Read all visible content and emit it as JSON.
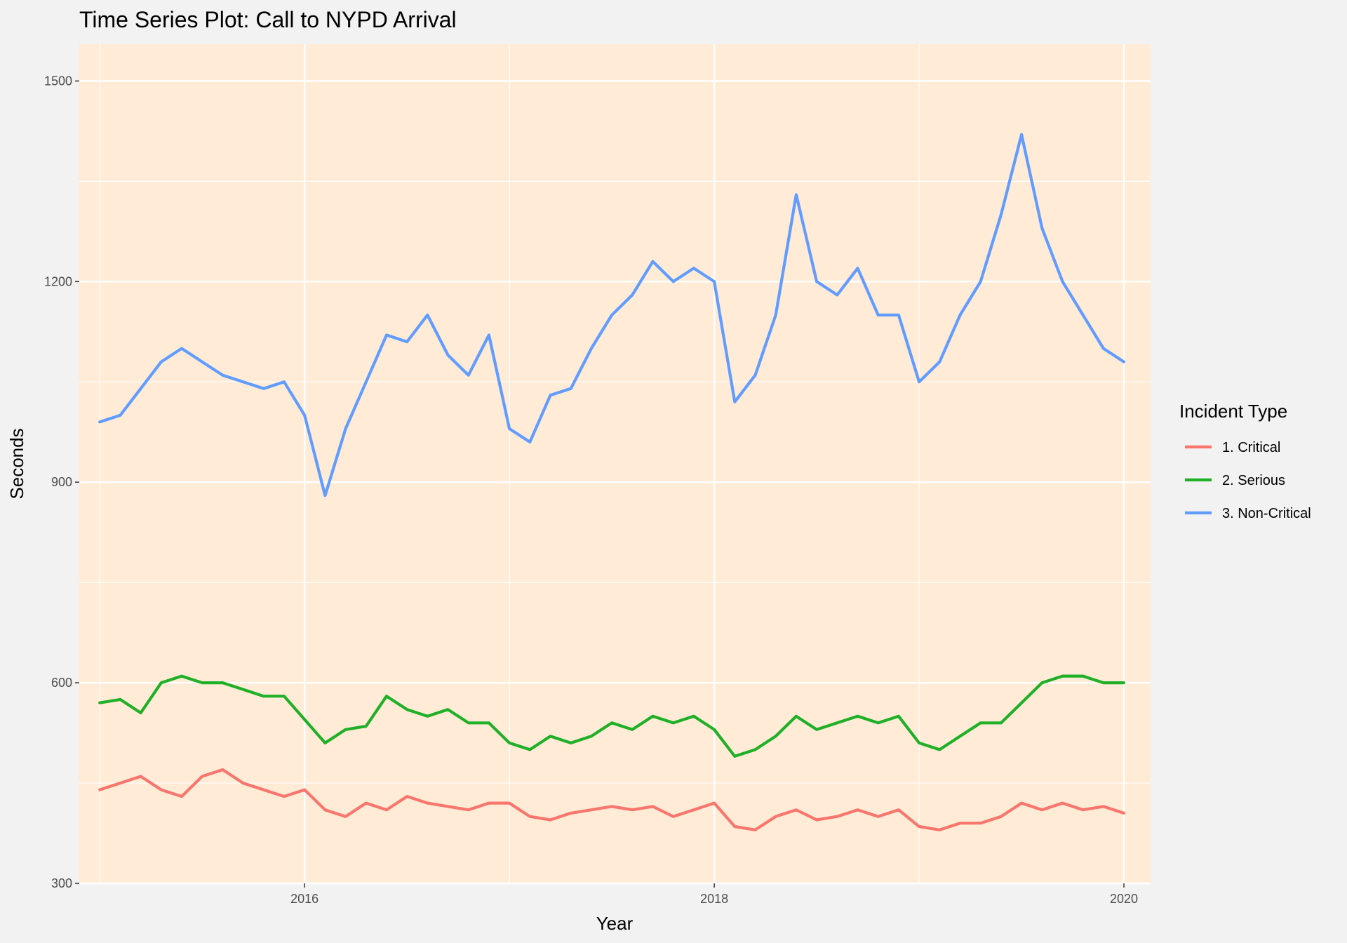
{
  "chart_data": {
    "type": "line",
    "title": "Time Series Plot:  Call to NYPD Arrival",
    "xlabel": "Year",
    "ylabel": "Seconds",
    "xlim": [
      2014.9,
      2020.13
    ],
    "ylim": [
      300,
      1555
    ],
    "x_ticks": [
      2016,
      2018,
      2020
    ],
    "x_tick_labels": [
      "2016",
      "2018",
      "2020"
    ],
    "y_ticks": [
      300,
      600,
      900,
      1200,
      1500
    ],
    "y_tick_labels": [
      "300",
      "600",
      "900",
      "1200",
      "1500"
    ],
    "grid": true,
    "background_color": "#ffebd6",
    "legend_title": "Incident Type",
    "legend_position": "right",
    "series": [
      {
        "name": "1. Critical",
        "color": "#f8766d",
        "x": [
          2015.0,
          2015.1,
          2015.2,
          2015.3,
          2015.4,
          2015.5,
          2015.6,
          2015.7,
          2015.8,
          2015.9,
          2016.0,
          2016.1,
          2016.2,
          2016.3,
          2016.4,
          2016.5,
          2016.6,
          2016.7,
          2016.8,
          2016.9,
          2017.0,
          2017.1,
          2017.2,
          2017.3,
          2017.4,
          2017.5,
          2017.6,
          2017.7,
          2017.8,
          2017.9,
          2018.0,
          2018.1,
          2018.2,
          2018.3,
          2018.4,
          2018.5,
          2018.6,
          2018.7,
          2018.8,
          2018.9,
          2019.0,
          2019.1,
          2019.2,
          2019.3,
          2019.4,
          2019.5,
          2019.6,
          2019.7,
          2019.8,
          2019.9,
          2020.0
        ],
        "values": [
          440,
          450,
          460,
          440,
          430,
          460,
          470,
          450,
          440,
          430,
          440,
          410,
          400,
          420,
          410,
          430,
          420,
          415,
          410,
          420,
          420,
          400,
          395,
          405,
          410,
          415,
          410,
          415,
          400,
          410,
          420,
          385,
          380,
          400,
          410,
          395,
          400,
          410,
          400,
          410,
          385,
          380,
          390,
          390,
          400,
          420,
          410,
          420,
          410,
          415,
          405
        ]
      },
      {
        "name": "2. Serious",
        "color": "#1fb028",
        "x": [
          2015.0,
          2015.1,
          2015.2,
          2015.3,
          2015.4,
          2015.5,
          2015.6,
          2015.7,
          2015.8,
          2015.9,
          2016.0,
          2016.1,
          2016.2,
          2016.3,
          2016.4,
          2016.5,
          2016.6,
          2016.7,
          2016.8,
          2016.9,
          2017.0,
          2017.1,
          2017.2,
          2017.3,
          2017.4,
          2017.5,
          2017.6,
          2017.7,
          2017.8,
          2017.9,
          2018.0,
          2018.1,
          2018.2,
          2018.3,
          2018.4,
          2018.5,
          2018.6,
          2018.7,
          2018.8,
          2018.9,
          2019.0,
          2019.1,
          2019.2,
          2019.3,
          2019.4,
          2019.5,
          2019.6,
          2019.7,
          2019.8,
          2019.9,
          2020.0
        ],
        "values": [
          570,
          575,
          555,
          600,
          610,
          600,
          600,
          590,
          580,
          580,
          545,
          510,
          530,
          535,
          580,
          560,
          550,
          560,
          540,
          540,
          510,
          500,
          520,
          510,
          520,
          540,
          530,
          550,
          540,
          550,
          530,
          490,
          500,
          520,
          550,
          530,
          540,
          550,
          540,
          550,
          510,
          500,
          520,
          540,
          540,
          570,
          600,
          610,
          610,
          600,
          600
        ]
      },
      {
        "name": "3. Non-Critical",
        "color": "#619cff",
        "x": [
          2015.0,
          2015.1,
          2015.2,
          2015.3,
          2015.4,
          2015.5,
          2015.6,
          2015.7,
          2015.8,
          2015.9,
          2016.0,
          2016.1,
          2016.2,
          2016.3,
          2016.4,
          2016.5,
          2016.6,
          2016.7,
          2016.8,
          2016.9,
          2017.0,
          2017.1,
          2017.2,
          2017.3,
          2017.4,
          2017.5,
          2017.6,
          2017.7,
          2017.8,
          2017.9,
          2018.0,
          2018.1,
          2018.2,
          2018.3,
          2018.4,
          2018.5,
          2018.6,
          2018.7,
          2018.8,
          2018.9,
          2019.0,
          2019.1,
          2019.2,
          2019.3,
          2019.4,
          2019.5,
          2019.6,
          2019.7,
          2019.8,
          2019.9,
          2020.0
        ],
        "values": [
          990,
          1000,
          1040,
          1080,
          1100,
          1080,
          1060,
          1050,
          1040,
          1050,
          1000,
          880,
          980,
          1050,
          1120,
          1110,
          1150,
          1090,
          1060,
          1120,
          980,
          960,
          1030,
          1040,
          1100,
          1150,
          1180,
          1230,
          1200,
          1220,
          1200,
          1020,
          1060,
          1150,
          1330,
          1200,
          1180,
          1220,
          1150,
          1150,
          1050,
          1080,
          1150,
          1200,
          1300,
          1420,
          1280,
          1200,
          1150,
          1100,
          1080
        ]
      }
    ]
  }
}
